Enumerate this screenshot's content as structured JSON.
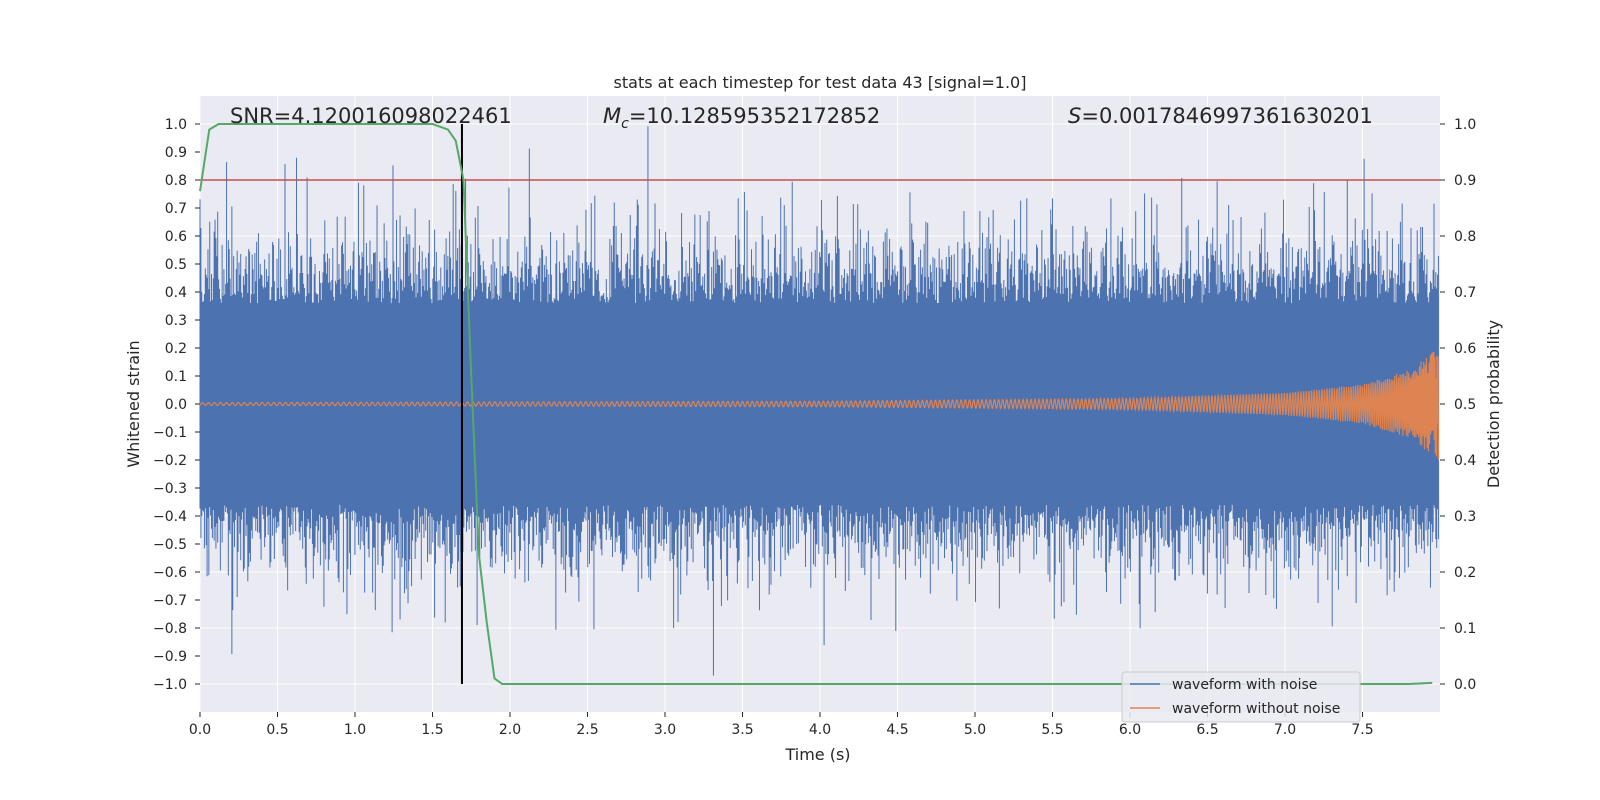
{
  "chart_data": {
    "type": "line",
    "title": "stats at each timestep for test data 43 [signal=1.0]",
    "xlabel": "Time (s)",
    "ylabel_left": "Whitened strain",
    "ylabel_right": "Detection probability",
    "xlim": [
      0.0,
      8.0
    ],
    "ylim_left": [
      -1.1,
      1.1
    ],
    "ylim_right": [
      -0.05,
      1.05
    ],
    "x_ticks": [
      "0.0",
      "0.5",
      "1.0",
      "1.5",
      "2.0",
      "2.5",
      "3.0",
      "3.5",
      "4.0",
      "4.5",
      "5.0",
      "5.5",
      "6.0",
      "6.5",
      "7.0",
      "7.5"
    ],
    "x_tick_values": [
      0.0,
      0.5,
      1.0,
      1.5,
      2.0,
      2.5,
      3.0,
      3.5,
      4.0,
      4.5,
      5.0,
      5.5,
      6.0,
      6.5,
      7.0,
      7.5
    ],
    "y_left_ticks": [
      "1.0",
      "0.9",
      "0.8",
      "0.7",
      "0.6",
      "0.5",
      "0.4",
      "0.3",
      "0.2",
      "0.1",
      "0.0",
      "−0.1",
      "−0.2",
      "−0.3",
      "−0.4",
      "−0.5",
      "−0.6",
      "−0.7",
      "−0.8",
      "−0.9",
      "−1.0"
    ],
    "y_left_tick_values": [
      1.0,
      0.9,
      0.8,
      0.7,
      0.6,
      0.5,
      0.4,
      0.3,
      0.2,
      0.1,
      0.0,
      -0.1,
      -0.2,
      -0.3,
      -0.4,
      -0.5,
      -0.6,
      -0.7,
      -0.8,
      -0.9,
      -1.0
    ],
    "y_right_ticks": [
      "1.0",
      "0.9",
      "0.8",
      "0.7",
      "0.6",
      "0.5",
      "0.4",
      "0.3",
      "0.2",
      "0.1",
      "0.0"
    ],
    "y_right_tick_values": [
      1.0,
      0.9,
      0.8,
      0.7,
      0.6,
      0.5,
      0.4,
      0.3,
      0.2,
      0.1,
      0.0
    ],
    "annotations": {
      "snr": "SNR=4.120016098022461",
      "mc_symbol": "M",
      "mc_sub": "c",
      "mc_value": "=10.128595352172852",
      "s_symbol": "S",
      "s_value": "=0.0017846997361630201"
    },
    "threshold_line": {
      "axis": "right",
      "value": 0.9,
      "color": "#c44e52"
    },
    "marker_line": {
      "x": 1.69,
      "color": "#000000"
    },
    "series": [
      {
        "name": "waveform with noise",
        "color": "#4c72b0",
        "axis": "left",
        "x_range": [
          0.0,
          7.99
        ],
        "band_approx": [
          -0.45,
          0.45
        ],
        "peak_approx": [
          -0.97,
          1.0
        ]
      },
      {
        "name": "waveform without noise",
        "color": "#dd8452",
        "axis": "left",
        "x_range": [
          0.0,
          7.99
        ],
        "chirp_envelope_approx": {
          "x": [
            0.0,
            4.0,
            6.0,
            7.0,
            7.5,
            7.8,
            7.99
          ],
          "amp": [
            0.005,
            0.01,
            0.02,
            0.04,
            0.07,
            0.12,
            0.2
          ]
        }
      },
      {
        "name": "detection probability",
        "color": "#55a868",
        "axis": "right",
        "x": [
          0.0,
          0.06,
          0.12,
          0.25,
          0.5,
          1.0,
          1.5,
          1.6,
          1.65,
          1.7,
          1.75,
          1.8,
          1.85,
          1.9,
          1.95,
          2.0,
          3.0,
          4.0,
          5.0,
          6.0,
          7.0,
          7.5,
          7.8,
          7.95
        ],
        "values": [
          0.88,
          0.99,
          1.0,
          1.0,
          1.0,
          1.0,
          1.0,
          0.99,
          0.97,
          0.9,
          0.55,
          0.23,
          0.11,
          0.01,
          0.0,
          0.0,
          0.0,
          0.0,
          0.0,
          0.0,
          0.0,
          0.0,
          0.0,
          0.002
        ]
      }
    ],
    "legend": {
      "placement": "lower-right",
      "entries": [
        {
          "label": "waveform with noise",
          "color": "#4c72b0"
        },
        {
          "label": "waveform without noise",
          "color": "#dd8452"
        }
      ]
    },
    "colors": {
      "plot_bg": "#eaeaf2",
      "grid": "#ffffff",
      "text": "#262626"
    }
  }
}
